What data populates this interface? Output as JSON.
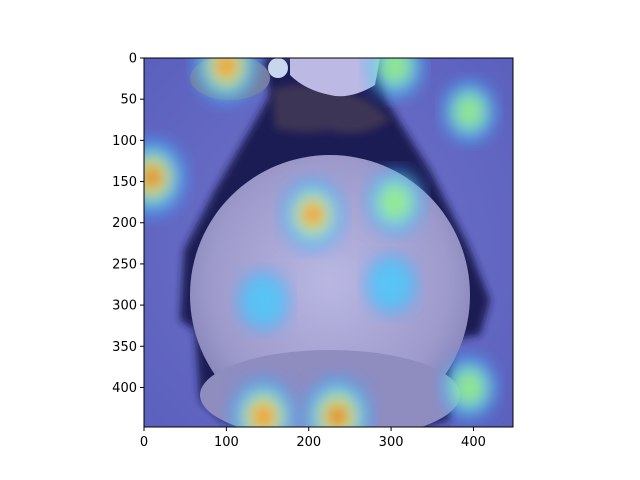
{
  "figure": {
    "type": "image-with-saliency-overlay",
    "subject": "penguin-like bird seen from behind",
    "colormap": "jet",
    "x_ticks": [
      "0",
      "100",
      "200",
      "300",
      "400"
    ],
    "y_ticks": [
      "0",
      "50",
      "100",
      "150",
      "200",
      "250",
      "300",
      "350",
      "400"
    ],
    "x_tick_values": [
      0,
      100,
      200,
      300,
      400
    ],
    "y_tick_values": [
      0,
      50,
      100,
      150,
      200,
      250,
      300,
      350,
      400
    ],
    "x_range": [
      0,
      448
    ],
    "y_range": [
      0,
      448
    ],
    "hotspots": [
      {
        "x": 100,
        "y": 10,
        "strength": 0.85
      },
      {
        "x": 305,
        "y": 10,
        "strength": 0.55
      },
      {
        "x": 395,
        "y": 65,
        "strength": 0.45
      },
      {
        "x": 10,
        "y": 145,
        "strength": 0.95
      },
      {
        "x": 205,
        "y": 190,
        "strength": 0.75
      },
      {
        "x": 305,
        "y": 175,
        "strength": 0.55
      },
      {
        "x": 145,
        "y": 435,
        "strength": 0.9
      },
      {
        "x": 235,
        "y": 435,
        "strength": 1.0
      },
      {
        "x": 395,
        "y": 400,
        "strength": 0.5
      },
      {
        "x": 145,
        "y": 295,
        "strength": 0.4
      },
      {
        "x": 300,
        "y": 275,
        "strength": 0.4
      }
    ]
  }
}
